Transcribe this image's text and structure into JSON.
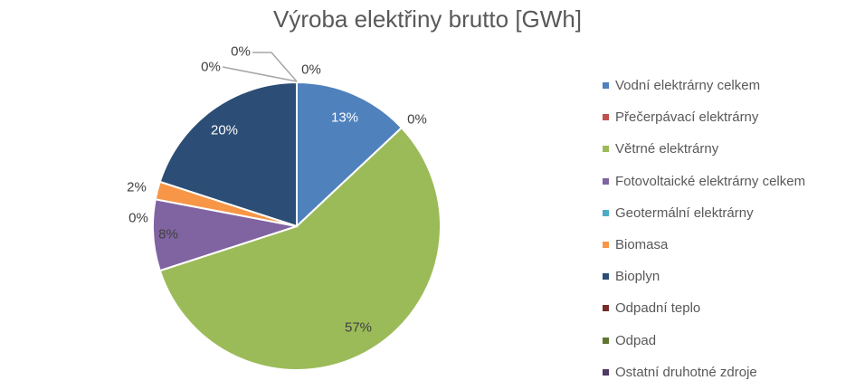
{
  "chart_data": {
    "type": "pie",
    "title": "Výroba elektřiny brutto [GWh]",
    "legend_position": "right",
    "categories": [
      "Vodní elektrárny celkem",
      "Přečerpávací elektrárny",
      "Větrné elektrárny",
      "Fotovoltaické elektrárny celkem",
      "Geotermální elektrárny",
      "Biomasa",
      "Bioplyn",
      "Odpadní teplo",
      "Odpad",
      "Ostatní druhotné zdroje"
    ],
    "values": [
      13,
      0,
      57,
      8,
      0,
      2,
      20,
      0,
      0,
      0
    ],
    "data_labels": [
      "13%",
      "0%",
      "57%",
      "8%",
      "0%",
      "2%",
      "20%",
      "0%",
      "0%",
      "0%"
    ],
    "colors": [
      "#4F81BD",
      "#C0504D",
      "#9BBB59",
      "#8064A2",
      "#4BACC6",
      "#F79646",
      "#2C4D75",
      "#772C2A",
      "#5F7530",
      "#4D3B62"
    ]
  }
}
